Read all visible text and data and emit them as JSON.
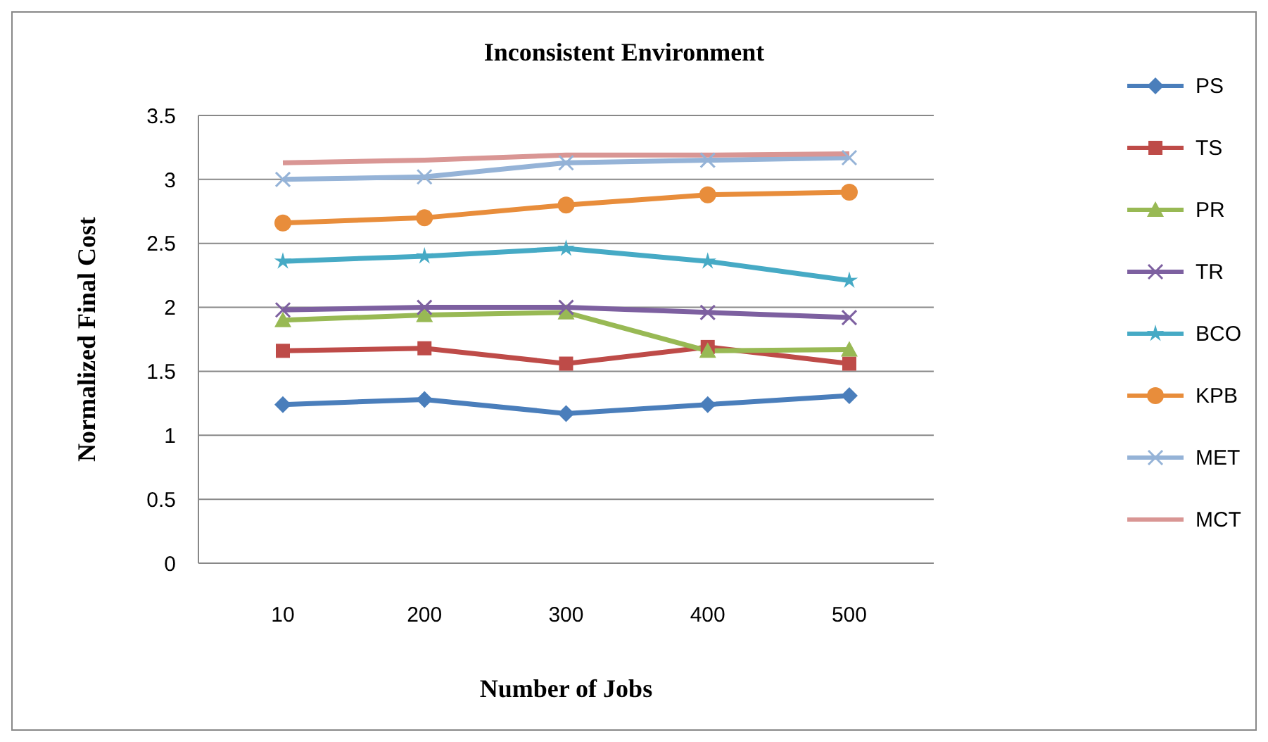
{
  "chart_data": {
    "type": "line",
    "title": "Inconsistent Environment",
    "xlabel": "Number of Jobs",
    "ylabel": "Normalized Final Cost",
    "categories": [
      "10",
      "200",
      "300",
      "400",
      "500"
    ],
    "ylim": [
      0,
      3.5
    ],
    "yticks": [
      0,
      0.5,
      1,
      1.5,
      2,
      2.5,
      3,
      3.5
    ],
    "grid": "y",
    "legend": "right",
    "line_style": "solid",
    "series": [
      {
        "name": "PS",
        "color": "#4a7ebb",
        "marker": "diamond",
        "values": [
          1.24,
          1.28,
          1.17,
          1.24,
          1.31
        ]
      },
      {
        "name": "TS",
        "color": "#be4b48",
        "marker": "square",
        "values": [
          1.66,
          1.68,
          1.56,
          1.69,
          1.56
        ]
      },
      {
        "name": "PR",
        "color": "#98b954",
        "marker": "triangle",
        "values": [
          1.9,
          1.94,
          1.96,
          1.66,
          1.67
        ]
      },
      {
        "name": "TR",
        "color": "#7d60a0",
        "marker": "cross",
        "values": [
          1.98,
          2.0,
          2.0,
          1.96,
          1.92
        ]
      },
      {
        "name": "BCO",
        "color": "#46aac5",
        "marker": "star",
        "values": [
          2.36,
          2.4,
          2.46,
          2.36,
          2.21
        ]
      },
      {
        "name": "KPB",
        "color": "#e88d3b",
        "marker": "circle",
        "values": [
          2.66,
          2.7,
          2.8,
          2.88,
          2.9
        ]
      },
      {
        "name": "MET",
        "color": "#95b3d7",
        "marker": "cross",
        "values": [
          3.0,
          3.02,
          3.13,
          3.15,
          3.17
        ]
      },
      {
        "name": "MCT",
        "color": "#d99694",
        "marker": "none",
        "values": [
          3.13,
          3.15,
          3.19,
          3.19,
          3.2
        ]
      }
    ]
  }
}
